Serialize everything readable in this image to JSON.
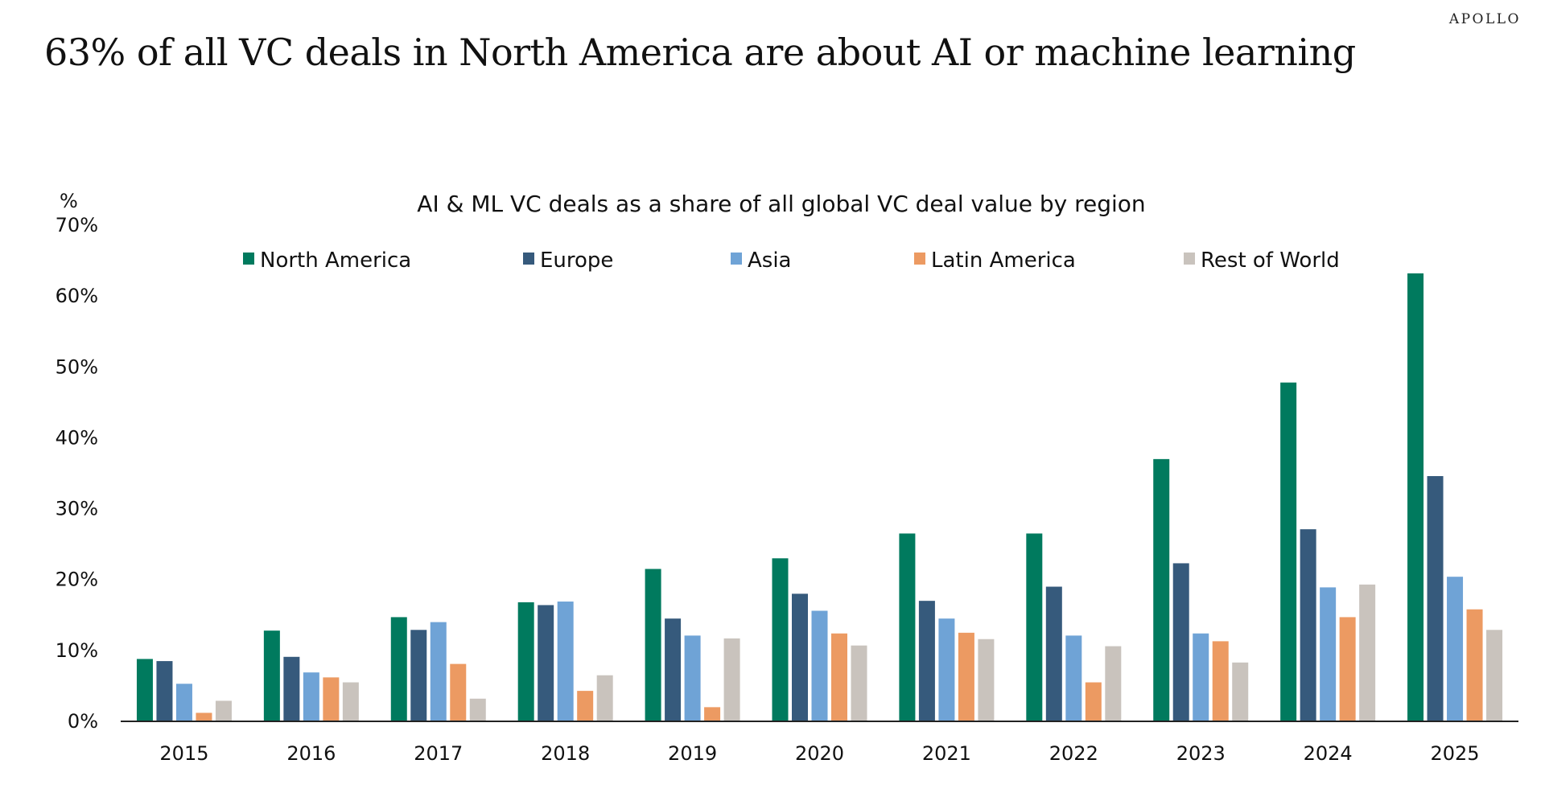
{
  "brand": "APOLLO",
  "headline": "63% of all VC deals in North America are about AI or machine learning",
  "chart_data": {
    "type": "bar",
    "title": "AI & ML VC deals as a share of all global VC deal value by region",
    "ylabel": "%",
    "xlabel": "",
    "ylim": [
      0,
      70
    ],
    "yticks": [
      "0%",
      "10%",
      "20%",
      "30%",
      "40%",
      "50%",
      "60%",
      "70%"
    ],
    "grid": false,
    "legend_position": "top",
    "categories": [
      "2015",
      "2016",
      "2017",
      "2018",
      "2019",
      "2020",
      "2021",
      "2022",
      "2023",
      "2024",
      "2025"
    ],
    "series": [
      {
        "name": "North America",
        "color": "#007a5e",
        "values": [
          8.8,
          12.8,
          14.7,
          16.8,
          21.5,
          23.0,
          26.5,
          26.5,
          37.0,
          47.8,
          63.2
        ]
      },
      {
        "name": "Europe",
        "color": "#365a7c",
        "values": [
          8.5,
          9.1,
          12.9,
          16.4,
          14.5,
          18.0,
          17.0,
          19.0,
          22.3,
          27.1,
          34.6
        ]
      },
      {
        "name": "Asia",
        "color": "#6fa3d6",
        "values": [
          5.3,
          6.9,
          14.0,
          16.9,
          12.1,
          15.6,
          14.5,
          12.1,
          12.4,
          18.9,
          20.4
        ]
      },
      {
        "name": "Latin America",
        "color": "#ec9a62",
        "values": [
          1.2,
          6.2,
          8.1,
          4.3,
          2.0,
          12.4,
          12.5,
          5.5,
          11.3,
          14.7,
          15.8
        ]
      },
      {
        "name": "Rest of World",
        "color": "#c9c3bd",
        "values": [
          2.9,
          5.5,
          3.2,
          6.5,
          11.7,
          10.7,
          11.6,
          10.6,
          8.3,
          19.3,
          12.9
        ]
      }
    ]
  }
}
